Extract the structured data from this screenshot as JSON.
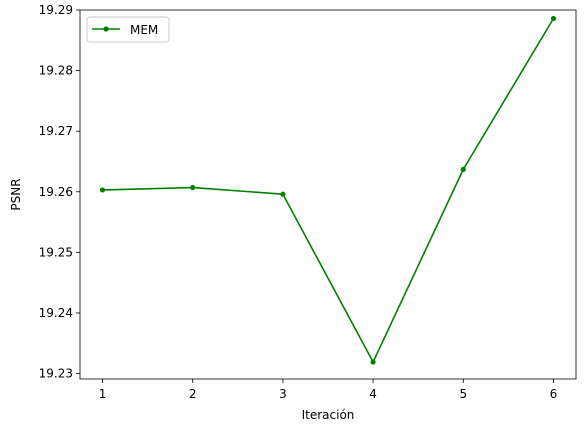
{
  "chart_data": {
    "type": "line",
    "title": "",
    "xlabel": "Iteración",
    "ylabel": "PSNR",
    "x": [
      1,
      2,
      3,
      4,
      5,
      6
    ],
    "series": [
      {
        "name": "MEM",
        "color": "#008000",
        "marker": "circle",
        "values": [
          19.2603,
          19.2607,
          19.2596,
          19.2319,
          19.2637,
          19.2886
        ]
      }
    ],
    "xlim": [
      0.75,
      6.25
    ],
    "ylim": [
      19.2291,
      19.29
    ],
    "xticks": [
      1,
      2,
      3,
      4,
      5,
      6
    ],
    "yticks": [
      19.23,
      19.24,
      19.25,
      19.26,
      19.27,
      19.28,
      19.29
    ],
    "ytick_labels": [
      "19.23",
      "19.24",
      "19.25",
      "19.26",
      "19.27",
      "19.28",
      "19.29"
    ],
    "grid": false,
    "legend": "top-left"
  }
}
